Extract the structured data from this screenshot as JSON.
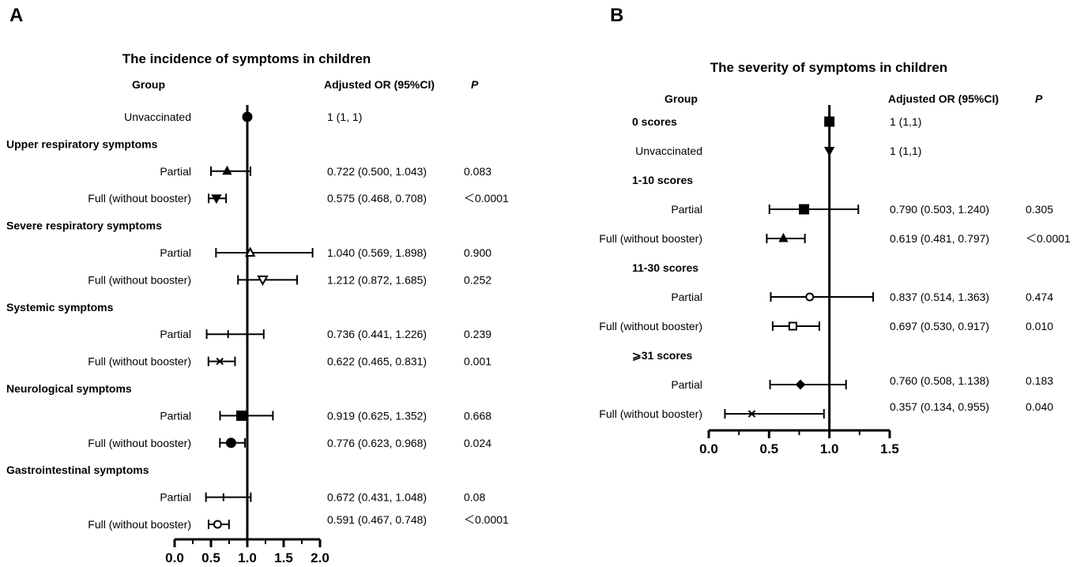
{
  "chart_data": [
    {
      "type": "forest",
      "panel_label": "A",
      "title": "The incidence of symptoms in children",
      "header_group": "Group",
      "header_or": "Adjusted OR (95%CI)",
      "header_p": "P",
      "xlim": [
        0.0,
        2.0
      ],
      "xticks": [
        "0.0",
        "0.5",
        "1.0",
        "1.5",
        "2.0"
      ],
      "reference_line": 1.0,
      "rows": [
        {
          "label": "Unvaccinated",
          "bold": false,
          "marker": "circle",
          "or": 1,
          "lo": 1,
          "hi": 1,
          "or_text": "1 (1, 1)",
          "p": ""
        },
        {
          "label": "Upper respiratory symptoms",
          "bold": true
        },
        {
          "label": "Partial",
          "bold": false,
          "marker": "triangle-up",
          "or": 0.722,
          "lo": 0.5,
          "hi": 1.043,
          "or_text": "0.722 (0.500, 1.043)",
          "p": "0.083"
        },
        {
          "label": "Full (without booster)",
          "bold": false,
          "marker": "triangle-down",
          "or": 0.575,
          "lo": 0.468,
          "hi": 0.708,
          "or_text": "0.575 (0.468, 0.708)",
          "p": "＜0.0001"
        },
        {
          "label": "Severe respiratory symptoms",
          "bold": true
        },
        {
          "label": "Partial",
          "bold": false,
          "marker": "triangle-up-open",
          "or": 1.04,
          "lo": 0.569,
          "hi": 1.898,
          "or_text": "1.040 (0.569, 1.898)",
          "p": "0.900"
        },
        {
          "label": "Full (without booster)",
          "bold": false,
          "marker": "triangle-down-open",
          "or": 1.212,
          "lo": 0.872,
          "hi": 1.685,
          "or_text": "1.212 (0.872, 1.685)",
          "p": "0.252"
        },
        {
          "label": "Systemic symptoms",
          "bold": true
        },
        {
          "label": "Partial",
          "bold": false,
          "marker": "plus",
          "or": 0.736,
          "lo": 0.441,
          "hi": 1.226,
          "or_text": "0.736 (0.441, 1.226)",
          "p": "0.239"
        },
        {
          "label": "Full (without booster)",
          "bold": false,
          "marker": "cross",
          "or": 0.622,
          "lo": 0.465,
          "hi": 0.831,
          "or_text": "0.622 (0.465, 0.831)",
          "p": "0.001"
        },
        {
          "label": "Neurological symptoms",
          "bold": true
        },
        {
          "label": "Partial",
          "bold": false,
          "marker": "square",
          "or": 0.919,
          "lo": 0.625,
          "hi": 1.352,
          "or_text": "0.919 (0.625, 1.352)",
          "p": "0.668"
        },
        {
          "label": "Full (without booster)",
          "bold": false,
          "marker": "circle",
          "or": 0.776,
          "lo": 0.623,
          "hi": 0.968,
          "or_text": "0.776 (0.623, 0.968)",
          "p": "0.024"
        },
        {
          "label": "Gastrointestinal symptoms",
          "bold": true
        },
        {
          "label": "Partial",
          "bold": false,
          "marker": "plus",
          "or": 0.672,
          "lo": 0.431,
          "hi": 1.048,
          "or_text": "0.672 (0.431, 1.048)",
          "p": "0.08"
        },
        {
          "label": "Full (without booster)",
          "bold": false,
          "marker": "circle-open",
          "or": 0.591,
          "lo": 0.467,
          "hi": 0.748,
          "or_text": "0.591 (0.467, 0.748)",
          "p": "＜0.0001"
        }
      ]
    },
    {
      "type": "forest",
      "panel_label": "B",
      "title": "The severity of symptoms in children",
      "header_group": "Group",
      "header_or": "Adjusted OR (95%CI)",
      "header_p": "P",
      "xlim": [
        0.0,
        1.5
      ],
      "xticks": [
        "0.0",
        "0.5",
        "1.0",
        "1.5"
      ],
      "reference_line": 1.0,
      "rows": [
        {
          "label": "0 scores",
          "bold": true,
          "marker": "square",
          "or": 1,
          "lo": 1,
          "hi": 1,
          "or_text": "1 (1,1)",
          "p": ""
        },
        {
          "label": "Unvaccinated",
          "bold": false,
          "marker": "triangle-down",
          "or": 1,
          "lo": 1,
          "hi": 1,
          "or_text": "1 (1,1)",
          "p": ""
        },
        {
          "label": "1-10 scores",
          "bold": true
        },
        {
          "label": "Partial",
          "bold": false,
          "marker": "square",
          "or": 0.79,
          "lo": 0.503,
          "hi": 1.24,
          "or_text": "0.790 (0.503, 1.240)",
          "p": "0.305"
        },
        {
          "label": "Full (without booster)",
          "bold": false,
          "marker": "triangle-up",
          "or": 0.619,
          "lo": 0.481,
          "hi": 0.797,
          "or_text": "0.619 (0.481, 0.797)",
          "p": "＜0.0001"
        },
        {
          "label": "11-30 scores",
          "bold": true
        },
        {
          "label": "Partial",
          "bold": false,
          "marker": "circle-open",
          "or": 0.837,
          "lo": 0.514,
          "hi": 1.363,
          "or_text": "0.837 (0.514, 1.363)",
          "p": "0.474"
        },
        {
          "label": "Full (without booster)",
          "bold": false,
          "marker": "square-open",
          "or": 0.697,
          "lo": 0.53,
          "hi": 0.917,
          "or_text": "0.697 (0.530, 0.917)",
          "p": "0.010"
        },
        {
          "label": "⩾31 scores",
          "bold": true
        },
        {
          "label": "Partial",
          "bold": false,
          "marker": "diamond",
          "or": 0.76,
          "lo": 0.508,
          "hi": 1.138,
          "or_text": "0.760 (0.508, 1.138)",
          "p": "0.183"
        },
        {
          "label": "Full (without booster)",
          "bold": false,
          "marker": "cross",
          "or": 0.357,
          "lo": 0.134,
          "hi": 0.955,
          "or_text": "0.357 (0.134, 0.955)",
          "p": "0.040"
        }
      ]
    }
  ]
}
